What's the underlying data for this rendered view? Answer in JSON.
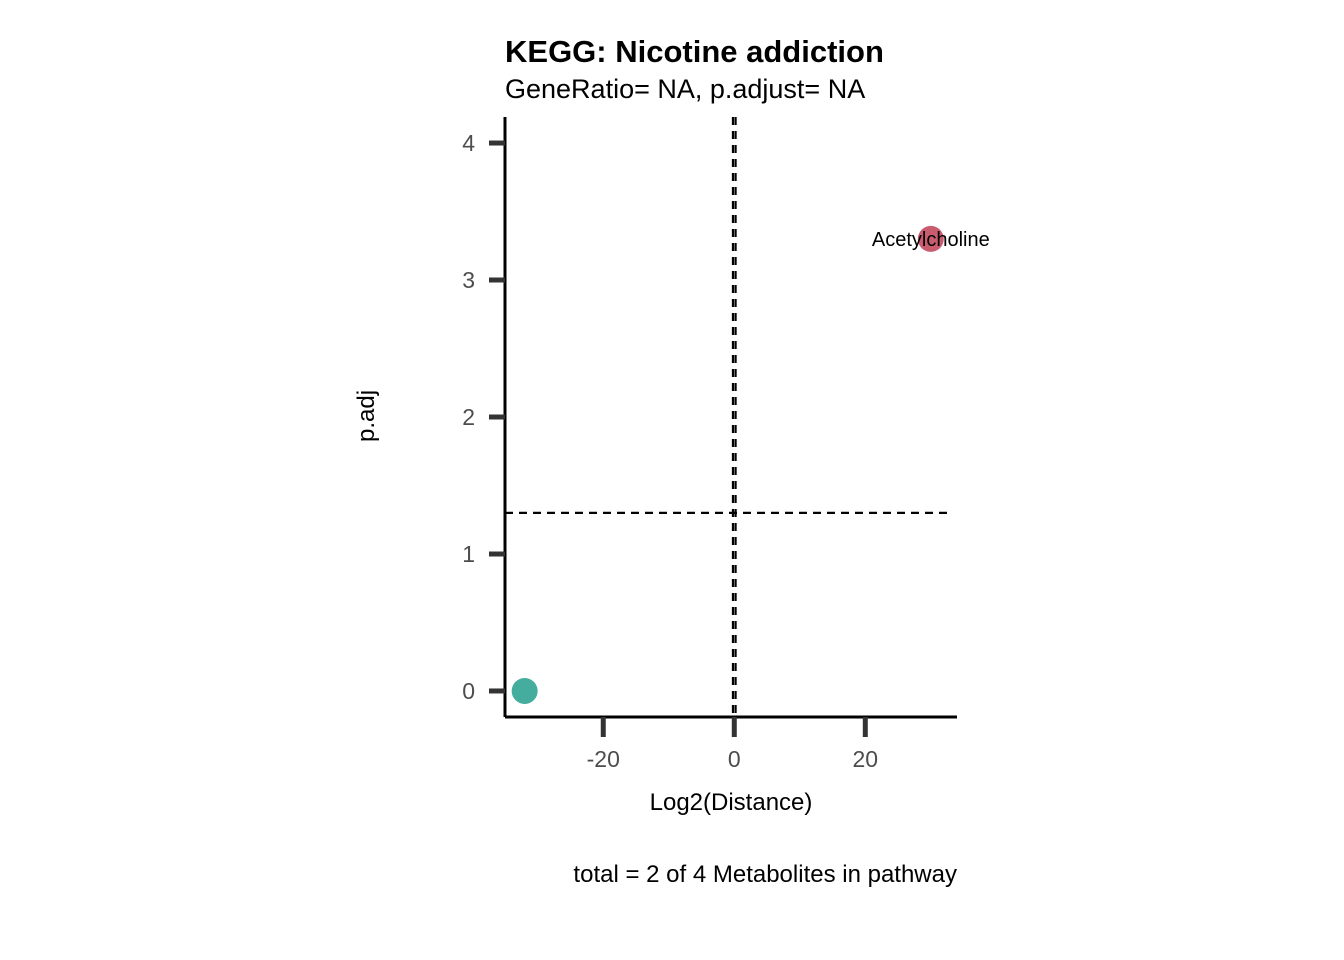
{
  "chart_data": {
    "type": "scatter",
    "title": "KEGG: Nicotine addiction",
    "subtitle": "GeneRatio= NA, p.adjust= NA",
    "xlabel": "Log2(Distance)",
    "ylabel": "p.adj",
    "caption": "total = 2 of 4 Metabolites in pathway",
    "xlim": [
      -35,
      34
    ],
    "ylim": [
      -0.19,
      4.19
    ],
    "x_ticks": [
      -20,
      0,
      20
    ],
    "x_tick_labels": [
      "-20",
      "0",
      "20"
    ],
    "y_ticks": [
      0,
      1,
      2,
      3,
      4
    ],
    "y_tick_labels": [
      "0",
      "1",
      "2",
      "3",
      "4"
    ],
    "vlines": [
      -0.2,
      0.2
    ],
    "hlines": [
      1.3
    ],
    "grid": false,
    "points": [
      {
        "x": -32,
        "y": 0,
        "color": "#45AD9E",
        "label": ""
      },
      {
        "x": 30,
        "y": 3.3,
        "color": "#C95D6F",
        "label": "Acetylcholine"
      }
    ]
  }
}
